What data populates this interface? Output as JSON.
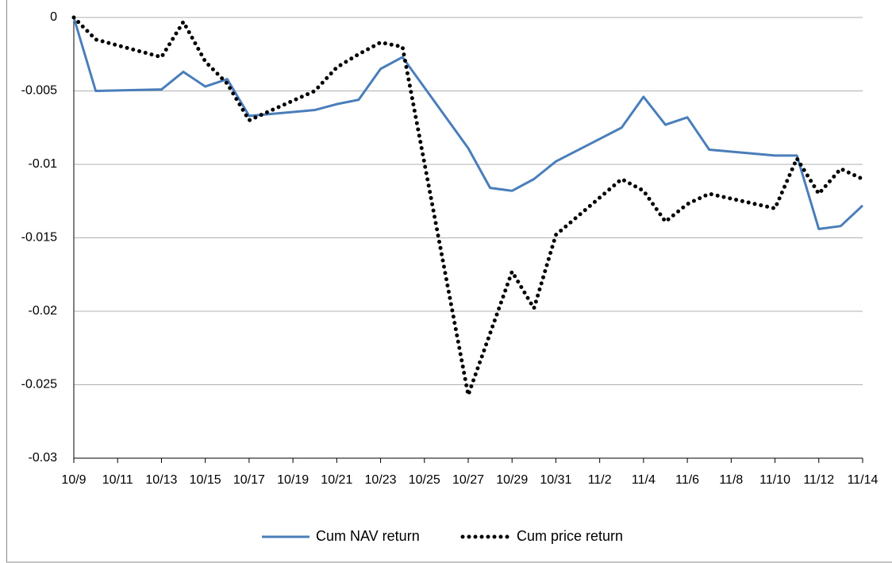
{
  "chart_data": {
    "type": "line",
    "x": [
      "10/9",
      "10/10",
      "10/13",
      "10/14",
      "10/15",
      "10/16",
      "10/17",
      "10/20",
      "10/21",
      "10/22",
      "10/23",
      "10/24",
      "10/27",
      "10/28",
      "10/29",
      "10/30",
      "10/31",
      "11/3",
      "11/4",
      "11/5",
      "11/6",
      "11/7",
      "11/10",
      "11/11",
      "11/12",
      "11/13",
      "11/14"
    ],
    "xlim": [
      "10/9",
      "11/14"
    ],
    "xticks": [
      "10/9",
      "10/11",
      "10/13",
      "10/15",
      "10/17",
      "10/19",
      "10/21",
      "10/23",
      "10/25",
      "10/27",
      "10/29",
      "10/31",
      "11/2",
      "11/4",
      "11/6",
      "11/8",
      "11/10",
      "11/12",
      "11/14"
    ],
    "ylim": [
      -0.03,
      0
    ],
    "yticks": [
      -0.03,
      -0.025,
      -0.02,
      -0.015,
      -0.01,
      -0.005,
      0
    ],
    "grid": true,
    "legend": "bottom",
    "series": [
      {
        "name": "Cum NAV return",
        "color": "#4a7ebb",
        "dash": "solid",
        "values": [
          0,
          -0.005,
          -0.0049,
          -0.0037,
          -0.0047,
          -0.0042,
          -0.0067,
          -0.0063,
          -0.0059,
          -0.0056,
          -0.0035,
          -0.0027,
          -0.0089,
          -0.0116,
          -0.0118,
          -0.011,
          -0.0098,
          -0.0075,
          -0.0054,
          -0.0073,
          -0.0068,
          -0.009,
          -0.0094,
          -0.0094,
          -0.0144,
          -0.0142,
          -0.0128
        ]
      },
      {
        "name": "Cum price return",
        "color": "#000000",
        "dash": "dotted",
        "values": [
          0,
          -0.0015,
          -0.0027,
          -0.0003,
          -0.003,
          -0.0045,
          -0.007,
          -0.005,
          -0.0034,
          -0.0025,
          -0.0017,
          -0.002,
          -0.0257,
          -0.0215,
          -0.0173,
          -0.0198,
          -0.0148,
          -0.011,
          -0.0118,
          -0.0139,
          -0.0127,
          -0.012,
          -0.013,
          -0.0096,
          -0.012,
          -0.0103,
          -0.011
        ]
      }
    ]
  }
}
